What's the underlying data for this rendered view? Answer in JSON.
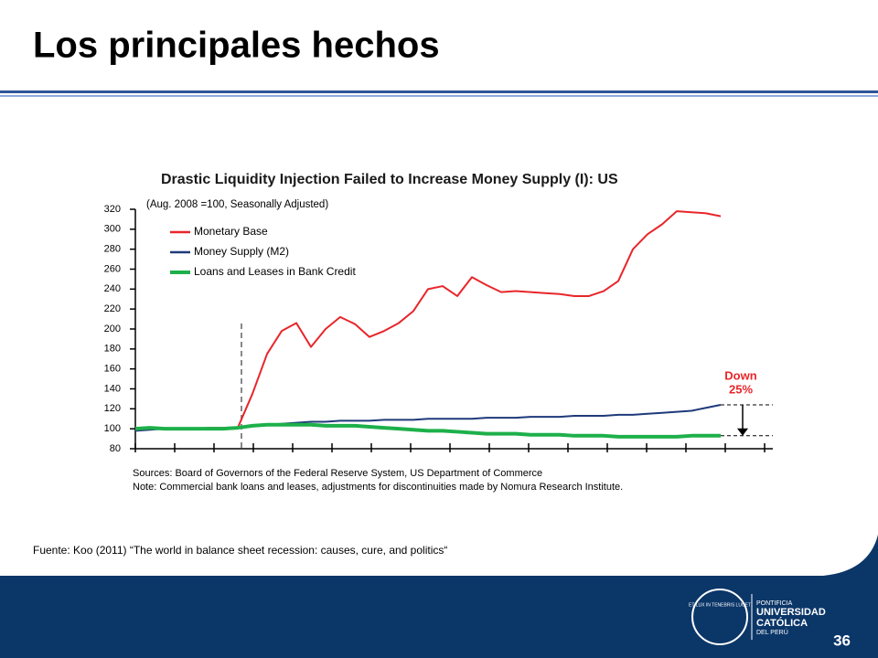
{
  "slide": {
    "title": "Los principales hechos",
    "source": "Fuente: Koo (2011) “The world in balance sheet recession: causes, cure, and politics“",
    "page_number": "36",
    "logo": {
      "motto": "ET LUX IN TENEBRIS LUCET",
      "line1": "PONTIFICIA",
      "line2": "UNIVERSIDAD",
      "line3": "CATÓLICA",
      "line4": "DEL PERÚ"
    }
  },
  "chart_data": {
    "type": "line",
    "title": "Drastic Liquidity Injection Failed to Increase Money Supply (I): US",
    "subtitle": "(Aug. 2008 =100, Seasonally Adjusted)",
    "sources": "Sources: Board of Governors of the Federal Reserve System, US Department of Commerce",
    "note": "Note: Commercial bank loans and leases, adjustments for discontinuities made by Nomura Research Institute.",
    "annotations": [
      "Down",
      "25%"
    ],
    "categories": [
      null,
      null,
      null,
      null,
      null,
      null,
      null,
      null,
      null,
      null,
      null,
      null,
      null,
      null,
      null,
      null,
      null,
      null,
      null,
      null,
      null,
      null,
      null,
      null,
      null,
      null,
      null,
      null,
      null,
      null,
      null,
      null,
      null,
      null,
      null,
      null,
      null,
      null,
      null,
      null,
      null
    ],
    "series": [
      {
        "name": "Monetary Base",
        "color": "#e8262b",
        "values": [
          100,
          100,
          100,
          100,
          100,
          101,
          101,
          101,
          135,
          175,
          198,
          206,
          182,
          200,
          212,
          205,
          192,
          198,
          206,
          218,
          240,
          243,
          233,
          252,
          244,
          237,
          238,
          237,
          236,
          235,
          233,
          233,
          238,
          248,
          280,
          295,
          305,
          318,
          317,
          316,
          313
        ]
      },
      {
        "name": "Money Supply (M2)",
        "color": "#1f3a7a",
        "values": [
          98,
          99,
          100,
          100,
          100,
          100,
          100,
          101,
          103,
          104,
          105,
          106,
          107,
          107,
          108,
          108,
          108,
          109,
          109,
          109,
          110,
          110,
          110,
          110,
          111,
          111,
          111,
          112,
          112,
          112,
          113,
          113,
          113,
          114,
          114,
          115,
          116,
          117,
          118,
          121,
          124
        ]
      },
      {
        "name": "Loans and Leases in Bank Credit",
        "color": "#1db04a",
        "values": [
          100,
          101,
          100,
          100,
          100,
          100,
          100,
          101,
          103,
          104,
          104,
          104,
          104,
          103,
          103,
          103,
          102,
          101,
          100,
          99,
          98,
          98,
          97,
          96,
          95,
          95,
          95,
          94,
          94,
          94,
          93,
          93,
          93,
          92,
          92,
          92,
          92,
          92,
          93,
          93,
          93
        ]
      }
    ],
    "ylim": [
      80,
      320
    ],
    "yticks": [
      80,
      100,
      120,
      140,
      160,
      180,
      200,
      220,
      240,
      260,
      280,
      300,
      320
    ],
    "legend": "upper left"
  }
}
